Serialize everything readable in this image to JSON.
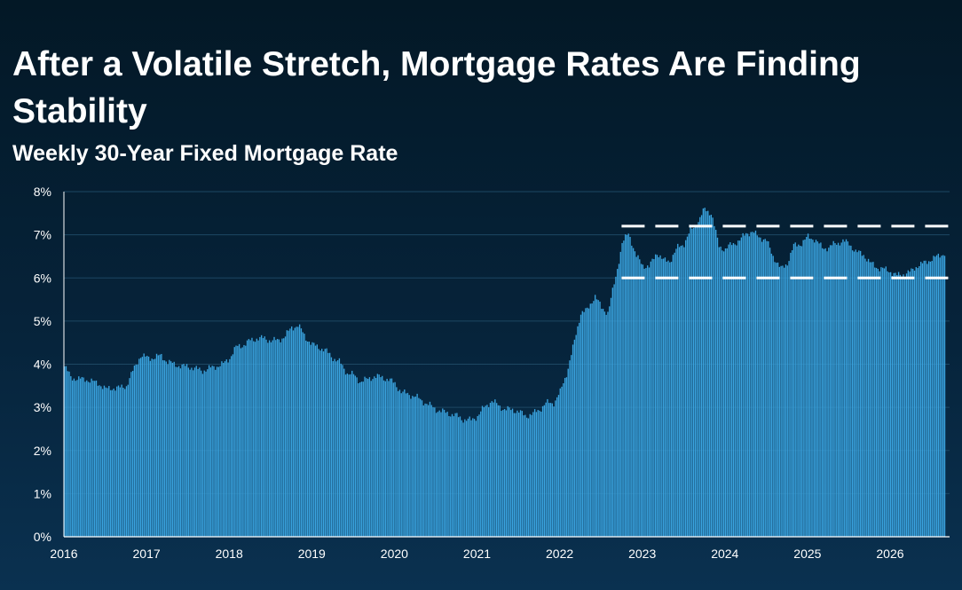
{
  "title": "After a Volatile Stretch, Mortgage Rates Are Finding Stability",
  "subtitle": "Weekly 30-Year Fixed Mortgage Rate",
  "colors": {
    "background_top": "#031826",
    "background_bottom": "#0a3150",
    "bar_fill": "#3aa4e0",
    "grid_line": "#1d4763",
    "dashed_reference": "#ffffff",
    "text": "#ffffff"
  },
  "chart_data": {
    "type": "bar",
    "title": "After a Volatile Stretch, Mortgage Rates Are Finding Stability",
    "subtitle": "Weekly 30-Year Fixed Mortgage Rate",
    "xlabel": "",
    "ylabel": "",
    "ylim": [
      0,
      8
    ],
    "xlim": [
      2016,
      2026.72
    ],
    "yticks": [
      0,
      1,
      2,
      3,
      4,
      5,
      6,
      7,
      8
    ],
    "ytick_labels": [
      "0%",
      "1%",
      "2%",
      "3%",
      "4%",
      "5%",
      "6%",
      "7%",
      "8%"
    ],
    "xticks": [
      2016,
      2017,
      2018,
      2019,
      2020,
      2021,
      2022,
      2023,
      2024,
      2025,
      2026
    ],
    "xtick_labels": [
      "2016",
      "2017",
      "2018",
      "2019",
      "2020",
      "2021",
      "2022",
      "2023",
      "2024",
      "2025",
      "2026"
    ],
    "grid": "horizontal",
    "legend": "none",
    "unit": "%",
    "x": [
      2016.0,
      2016.08,
      2016.17,
      2016.25,
      2016.33,
      2016.42,
      2016.5,
      2016.58,
      2016.67,
      2016.75,
      2016.83,
      2016.92,
      2017.0,
      2017.08,
      2017.17,
      2017.25,
      2017.33,
      2017.42,
      2017.5,
      2017.58,
      2017.67,
      2017.75,
      2017.83,
      2017.92,
      2018.0,
      2018.08,
      2018.17,
      2018.25,
      2018.33,
      2018.42,
      2018.5,
      2018.58,
      2018.67,
      2018.75,
      2018.83,
      2018.92,
      2019.0,
      2019.08,
      2019.17,
      2019.25,
      2019.33,
      2019.42,
      2019.5,
      2019.58,
      2019.67,
      2019.75,
      2019.83,
      2019.92,
      2020.0,
      2020.08,
      2020.17,
      2020.25,
      2020.33,
      2020.42,
      2020.5,
      2020.58,
      2020.67,
      2020.75,
      2020.83,
      2020.92,
      2021.0,
      2021.08,
      2021.17,
      2021.25,
      2021.33,
      2021.42,
      2021.5,
      2021.58,
      2021.67,
      2021.75,
      2021.83,
      2021.92,
      2022.0,
      2022.08,
      2022.17,
      2022.25,
      2022.33,
      2022.42,
      2022.5,
      2022.58,
      2022.67,
      2022.75,
      2022.83,
      2022.92,
      2023.0,
      2023.08,
      2023.17,
      2023.25,
      2023.33,
      2023.42,
      2023.5,
      2023.58,
      2023.67,
      2023.75,
      2023.83,
      2023.92,
      2024.0,
      2024.08,
      2024.17,
      2024.25,
      2024.33,
      2024.42,
      2024.5,
      2024.58,
      2024.67,
      2024.75,
      2024.83,
      2024.92,
      2025.0,
      2025.08,
      2025.17,
      2025.25,
      2025.33,
      2025.42,
      2025.5,
      2025.58,
      2025.67,
      2025.75,
      2025.83,
      2025.92,
      2026.0,
      2026.08,
      2026.17,
      2026.25,
      2026.33,
      2026.42,
      2026.5,
      2026.58,
      2026.67
    ],
    "series": [
      {
        "values": [
          3.95,
          3.7,
          3.65,
          3.66,
          3.6,
          3.55,
          3.42,
          3.45,
          3.45,
          3.5,
          3.85,
          4.2,
          4.15,
          4.15,
          4.2,
          4.05,
          4.0,
          3.95,
          3.95,
          3.9,
          3.85,
          3.9,
          3.95,
          4.0,
          4.15,
          4.4,
          4.45,
          4.55,
          4.6,
          4.6,
          4.55,
          4.55,
          4.65,
          4.85,
          4.9,
          4.62,
          4.45,
          4.4,
          4.3,
          4.15,
          4.05,
          3.8,
          3.75,
          3.6,
          3.65,
          3.72,
          3.7,
          3.65,
          3.55,
          3.35,
          3.3,
          3.25,
          3.15,
          3.05,
          2.95,
          2.9,
          2.85,
          2.8,
          2.72,
          2.7,
          2.8,
          3.0,
          3.15,
          3.05,
          2.95,
          2.95,
          2.9,
          2.8,
          2.85,
          2.95,
          3.1,
          3.1,
          3.35,
          3.8,
          4.5,
          5.2,
          5.25,
          5.6,
          5.3,
          5.2,
          6.0,
          6.8,
          7.05,
          6.5,
          6.3,
          6.25,
          6.6,
          6.4,
          6.4,
          6.7,
          6.8,
          7.1,
          7.3,
          7.6,
          7.5,
          6.75,
          6.65,
          6.8,
          6.85,
          7.05,
          7.05,
          6.95,
          6.85,
          6.5,
          6.2,
          6.35,
          6.75,
          6.8,
          6.95,
          6.9,
          6.7,
          6.7,
          6.8,
          6.85,
          6.8,
          6.6,
          6.55,
          6.35,
          6.25,
          6.2,
          6.15,
          6.05,
          6.1,
          6.15,
          6.3,
          6.35,
          6.45,
          6.5,
          6.6
        ]
      }
    ],
    "reference_lines": [
      7.2,
      6.0
    ],
    "reference_line_start": 2022.75
  }
}
